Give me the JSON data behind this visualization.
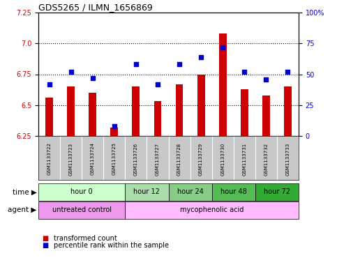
{
  "title": "GDS5265 / ILMN_1656869",
  "samples": [
    "GSM1133722",
    "GSM1133723",
    "GSM1133724",
    "GSM1133725",
    "GSM1133726",
    "GSM1133727",
    "GSM1133728",
    "GSM1133729",
    "GSM1133730",
    "GSM1133731",
    "GSM1133732",
    "GSM1133733"
  ],
  "transformed_counts": [
    6.56,
    6.65,
    6.6,
    6.32,
    6.65,
    6.53,
    6.67,
    6.75,
    7.08,
    6.63,
    6.58,
    6.65
  ],
  "percentile_ranks": [
    42,
    52,
    47,
    8,
    58,
    42,
    58,
    64,
    72,
    52,
    46,
    52
  ],
  "ylim_left": [
    6.25,
    7.25
  ],
  "ylim_right": [
    0,
    100
  ],
  "yticks_left": [
    6.25,
    6.5,
    6.75,
    7.0,
    7.25
  ],
  "yticks_right": [
    0,
    25,
    50,
    75,
    100
  ],
  "ytick_labels_right": [
    "0",
    "25",
    "50",
    "75",
    "100%"
  ],
  "bar_color": "#cc0000",
  "dot_color": "#0000cc",
  "bar_bottom": 6.25,
  "time_groups": [
    {
      "label": "hour 0",
      "start": 0,
      "end": 3,
      "color": "#ccffcc"
    },
    {
      "label": "hour 12",
      "start": 4,
      "end": 5,
      "color": "#aaddaa"
    },
    {
      "label": "hour 24",
      "start": 6,
      "end": 7,
      "color": "#88cc88"
    },
    {
      "label": "hour 48",
      "start": 8,
      "end": 9,
      "color": "#55bb55"
    },
    {
      "label": "hour 72",
      "start": 10,
      "end": 11,
      "color": "#33aa33"
    }
  ],
  "agent_groups": [
    {
      "label": "untreated control",
      "start": 0,
      "end": 3,
      "color": "#ee99ee"
    },
    {
      "label": "mycophenolic acid",
      "start": 4,
      "end": 11,
      "color": "#ffbbff"
    }
  ],
  "legend_bar_label": "transformed count",
  "legend_dot_label": "percentile rank within the sample",
  "time_label": "time",
  "agent_label": "agent",
  "bg_color": "#ffffff",
  "label_color_left": "#cc0000",
  "label_color_right": "#0000cc",
  "sample_bg_color": "#c8c8c8",
  "grid_dotted_at": [
    6.5,
    6.75,
    7.0
  ]
}
